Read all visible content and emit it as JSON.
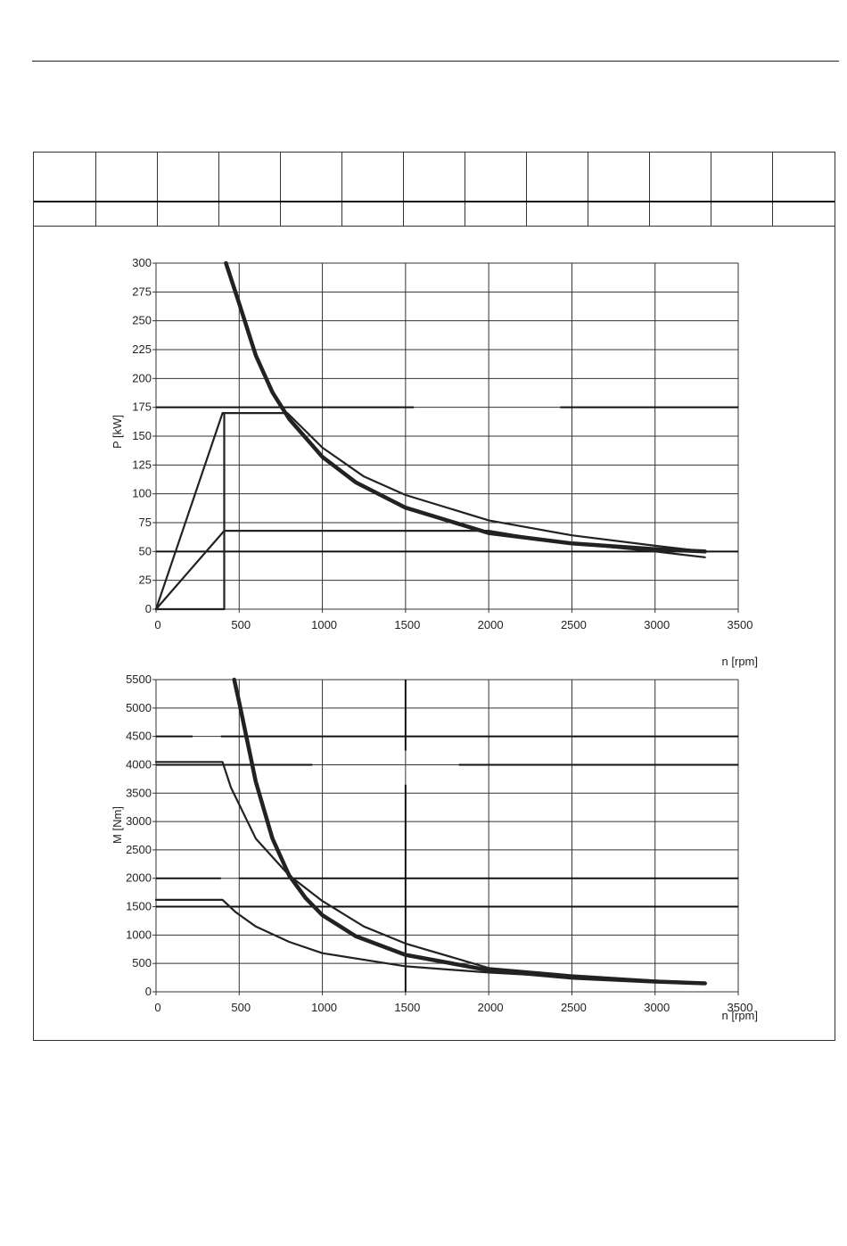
{
  "header_table": {
    "columns": 13,
    "rows": [
      [
        "",
        "",
        "",
        "",
        "",
        "",
        "",
        "",
        "",
        "",
        "",
        "",
        ""
      ],
      [
        "",
        "",
        "",
        "",
        "",
        "",
        "",
        "",
        "",
        "",
        "",
        "",
        ""
      ]
    ]
  },
  "chart_data": [
    {
      "type": "line",
      "title": "",
      "xlabel": "n [rpm]",
      "ylabel": "P [kW]",
      "xlim": [
        0,
        3500
      ],
      "ylim": [
        0,
        300
      ],
      "xticks": [
        0,
        500,
        1000,
        1500,
        2000,
        2500,
        3000,
        3500
      ],
      "yticks": [
        0,
        25,
        50,
        75,
        100,
        125,
        150,
        175,
        200,
        225,
        250,
        275,
        300
      ],
      "xtick_labels": [
        "0",
        "500",
        "1000",
        "1500",
        "2000",
        "2500",
        "3000",
        "3500"
      ],
      "ytick_labels": [
        "0",
        "25",
        "50",
        "75",
        "100",
        "125",
        "150",
        "175",
        "200",
        "225",
        "250",
        "275",
        "300"
      ],
      "grid": true,
      "series": [
        {
          "style": "bold",
          "points": [
            [
              420,
              300
            ],
            [
              500,
              265
            ],
            [
              600,
              220
            ],
            [
              700,
              188
            ],
            [
              800,
              165
            ],
            [
              1000,
              132
            ],
            [
              1200,
              110
            ],
            [
              1500,
              88
            ],
            [
              2000,
              66
            ],
            [
              2500,
              57
            ],
            [
              3000,
              52
            ],
            [
              3300,
              50
            ]
          ]
        },
        {
          "style": "thin",
          "points": [
            [
              0,
              0
            ],
            [
              400,
              170
            ],
            [
              790,
              170
            ],
            [
              1000,
              140
            ],
            [
              1250,
              115
            ],
            [
              1500,
              99
            ],
            [
              2000,
              77
            ],
            [
              2500,
              64
            ],
            [
              3000,
              55
            ],
            [
              3300,
              50
            ]
          ]
        },
        {
          "style": "thin",
          "points": [
            [
              0,
              0
            ],
            [
              410,
              68
            ],
            [
              2000,
              68
            ],
            [
              2250,
              62
            ],
            [
              2500,
              57
            ],
            [
              3000,
              50
            ],
            [
              3300,
              45
            ]
          ]
        },
        {
          "style": "thin",
          "points": [
            [
              0,
              0
            ],
            [
              410,
              0
            ],
            [
              410,
              170
            ]
          ]
        }
      ],
      "reference_lines": [
        {
          "y": 175,
          "x_ranges": [
            [
              0,
              1550
            ],
            [
              2430,
              3500
            ]
          ]
        },
        {
          "y": 50,
          "x_ranges": [
            [
              0,
              3500
            ]
          ]
        }
      ]
    },
    {
      "type": "line",
      "title": "",
      "xlabel": "n [rpm]",
      "ylabel": "M [Nm]",
      "xlim": [
        0,
        3500
      ],
      "ylim": [
        0,
        5500
      ],
      "xticks": [
        0,
        500,
        1000,
        1500,
        2000,
        2500,
        3000,
        3500
      ],
      "yticks": [
        0,
        500,
        1000,
        1500,
        2000,
        2500,
        3000,
        3500,
        4000,
        4500,
        5000,
        5500
      ],
      "xtick_labels": [
        "0",
        "500",
        "1000",
        "1500",
        "2000",
        "2500",
        "3000",
        "3500"
      ],
      "ytick_labels": [
        "0",
        "500",
        "1000",
        "1500",
        "2000",
        "2500",
        "3000",
        "3500",
        "4000",
        "4500",
        "5000",
        "5500"
      ],
      "grid": true,
      "series": [
        {
          "style": "bold",
          "points": [
            [
              470,
              5500
            ],
            [
              500,
              5100
            ],
            [
              600,
              3700
            ],
            [
              700,
              2700
            ],
            [
              800,
              2050
            ],
            [
              900,
              1650
            ],
            [
              1000,
              1350
            ],
            [
              1200,
              980
            ],
            [
              1500,
              650
            ],
            [
              2000,
              380
            ],
            [
              2500,
              250
            ],
            [
              3000,
              180
            ],
            [
              3300,
              150
            ]
          ]
        },
        {
          "style": "thin",
          "points": [
            [
              0,
              4050
            ],
            [
              400,
              4050
            ],
            [
              450,
              3600
            ],
            [
              600,
              2700
            ],
            [
              800,
              2050
            ],
            [
              1000,
              1600
            ],
            [
              1250,
              1150
            ],
            [
              1500,
              850
            ],
            [
              2000,
              420
            ],
            [
              2500,
              290
            ],
            [
              3000,
              200
            ],
            [
              3300,
              160
            ]
          ]
        },
        {
          "style": "thin",
          "points": [
            [
              0,
              1620
            ],
            [
              400,
              1620
            ],
            [
              480,
              1400
            ],
            [
              600,
              1150
            ],
            [
              800,
              880
            ],
            [
              1000,
              680
            ],
            [
              1500,
              450
            ],
            [
              2000,
              340
            ],
            [
              2500,
              260
            ],
            [
              3000,
              190
            ],
            [
              3300,
              150
            ]
          ]
        }
      ],
      "reference_lines": [
        {
          "y": 4500,
          "x_ranges": [
            [
              0,
              220
            ],
            [
              390,
              3500
            ]
          ]
        },
        {
          "y": 4000,
          "x_ranges": [
            [
              0,
              940
            ],
            [
              1820,
              3500
            ]
          ]
        },
        {
          "y": 2000,
          "x_ranges": [
            [
              0,
              390
            ],
            [
              500,
              3500
            ]
          ]
        },
        {
          "y": 1500,
          "x_ranges": [
            [
              0,
              3500
            ]
          ]
        }
      ],
      "vertical_lines": [
        {
          "x": 1500,
          "y_ranges": [
            [
              0,
              3650
            ],
            [
              4250,
              5500
            ]
          ]
        }
      ]
    }
  ]
}
